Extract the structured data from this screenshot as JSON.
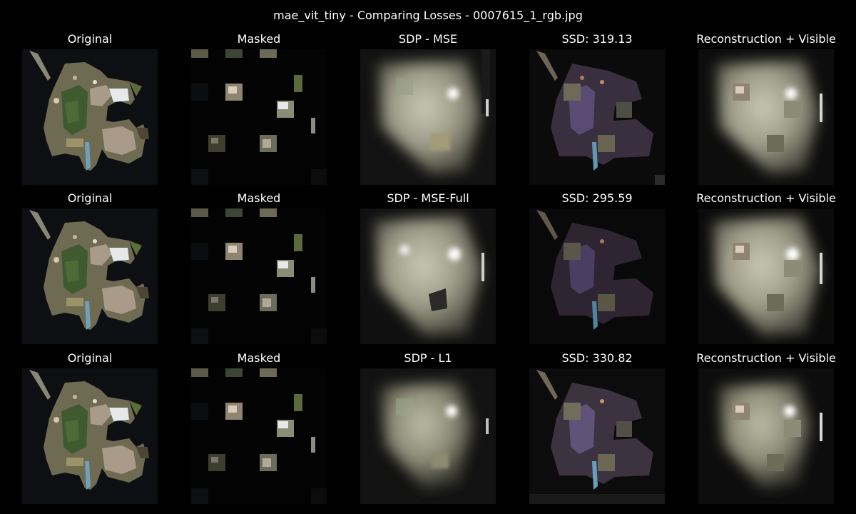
{
  "figure": {
    "title": "mae_vit_tiny - Comparing Losses - 0007615_1_rgb.jpg"
  },
  "rows": [
    {
      "panels": [
        {
          "title": "Original",
          "kind": "original"
        },
        {
          "title": "Masked",
          "kind": "masked"
        },
        {
          "title": "SDP - MSE",
          "kind": "reconstruction"
        },
        {
          "title": "SSD: 319.13",
          "kind": "ssd-map"
        },
        {
          "title": "Reconstruction + Visible",
          "kind": "reconstruction-visible"
        }
      ]
    },
    {
      "panels": [
        {
          "title": "Original",
          "kind": "original"
        },
        {
          "title": "Masked",
          "kind": "masked"
        },
        {
          "title": "SDP - MSE-Full",
          "kind": "reconstruction"
        },
        {
          "title": "SSD: 295.59",
          "kind": "ssd-map"
        },
        {
          "title": "Reconstruction + Visible",
          "kind": "reconstruction-visible"
        }
      ]
    },
    {
      "panels": [
        {
          "title": "Original",
          "kind": "original"
        },
        {
          "title": "Masked",
          "kind": "masked"
        },
        {
          "title": "SDP - L1",
          "kind": "reconstruction"
        },
        {
          "title": "SSD: 330.82",
          "kind": "ssd-map"
        },
        {
          "title": "Reconstruction + Visible",
          "kind": "reconstruction-visible"
        }
      ]
    }
  ]
}
